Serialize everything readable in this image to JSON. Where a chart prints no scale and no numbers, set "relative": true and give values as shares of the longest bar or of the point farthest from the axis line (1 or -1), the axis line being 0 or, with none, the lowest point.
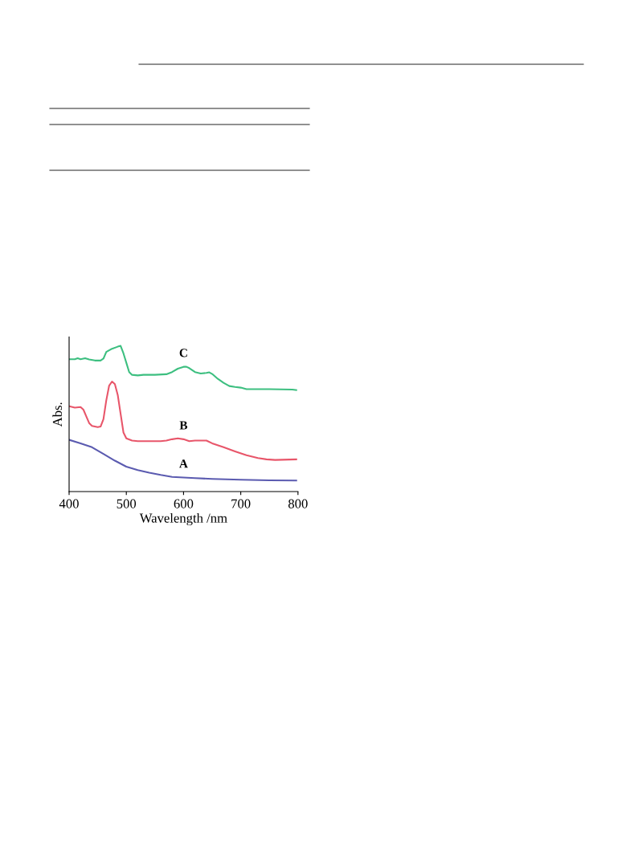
{
  "chart_data": {
    "type": "line",
    "xlabel": "Wavelength /nm",
    "ylabel": "Abs.",
    "relative": true,
    "xlim": [
      400,
      800
    ],
    "xticks": [
      400,
      500,
      600,
      700,
      800
    ],
    "tick_labels": "x",
    "grid": false,
    "legend": false,
    "series": [
      {
        "name": "A",
        "color": "#5b5bb0",
        "x": [
          400,
          420,
          440,
          460,
          480,
          500,
          520,
          540,
          560,
          580,
          600,
          620,
          650,
          700,
          750,
          797
        ],
        "values": [
          0.355,
          0.331,
          0.304,
          0.258,
          0.212,
          0.171,
          0.147,
          0.129,
          0.114,
          0.101,
          0.096,
          0.092,
          0.087,
          0.081,
          0.077,
          0.076
        ]
      },
      {
        "name": "B",
        "color": "#e8566a",
        "x": [
          400,
          410,
          420,
          425,
          430,
          435,
          440,
          450,
          455,
          460,
          465,
          470,
          475,
          480,
          485,
          490,
          495,
          500,
          510,
          520,
          560,
          570,
          580,
          590,
          600,
          610,
          620,
          640,
          650,
          670,
          690,
          710,
          730,
          745,
          760,
          797
        ],
        "values": [
          0.586,
          0.576,
          0.58,
          0.562,
          0.516,
          0.47,
          0.451,
          0.442,
          0.446,
          0.497,
          0.626,
          0.727,
          0.755,
          0.737,
          0.663,
          0.534,
          0.405,
          0.365,
          0.35,
          0.346,
          0.346,
          0.35,
          0.359,
          0.365,
          0.359,
          0.346,
          0.35,
          0.35,
          0.331,
          0.304,
          0.276,
          0.249,
          0.23,
          0.221,
          0.217,
          0.221
        ]
      },
      {
        "name": "C",
        "color": "#3dbf80",
        "x": [
          400,
          410,
          415,
          420,
          428,
          435,
          445,
          455,
          460,
          465,
          475,
          485,
          490,
          495,
          500,
          505,
          510,
          520,
          530,
          550,
          570,
          580,
          590,
          600,
          605,
          610,
          620,
          630,
          640,
          645,
          650,
          660,
          670,
          680,
          690,
          700,
          710,
          750,
          790,
          797
        ],
        "values": [
          0.908,
          0.908,
          0.915,
          0.908,
          0.915,
          0.906,
          0.899,
          0.899,
          0.912,
          0.958,
          0.98,
          0.994,
          1.0,
          0.948,
          0.884,
          0.82,
          0.801,
          0.797,
          0.801,
          0.801,
          0.805,
          0.82,
          0.843,
          0.856,
          0.856,
          0.847,
          0.82,
          0.81,
          0.814,
          0.818,
          0.807,
          0.773,
          0.746,
          0.724,
          0.718,
          0.713,
          0.703,
          0.703,
          0.7,
          0.696
        ]
      }
    ]
  }
}
